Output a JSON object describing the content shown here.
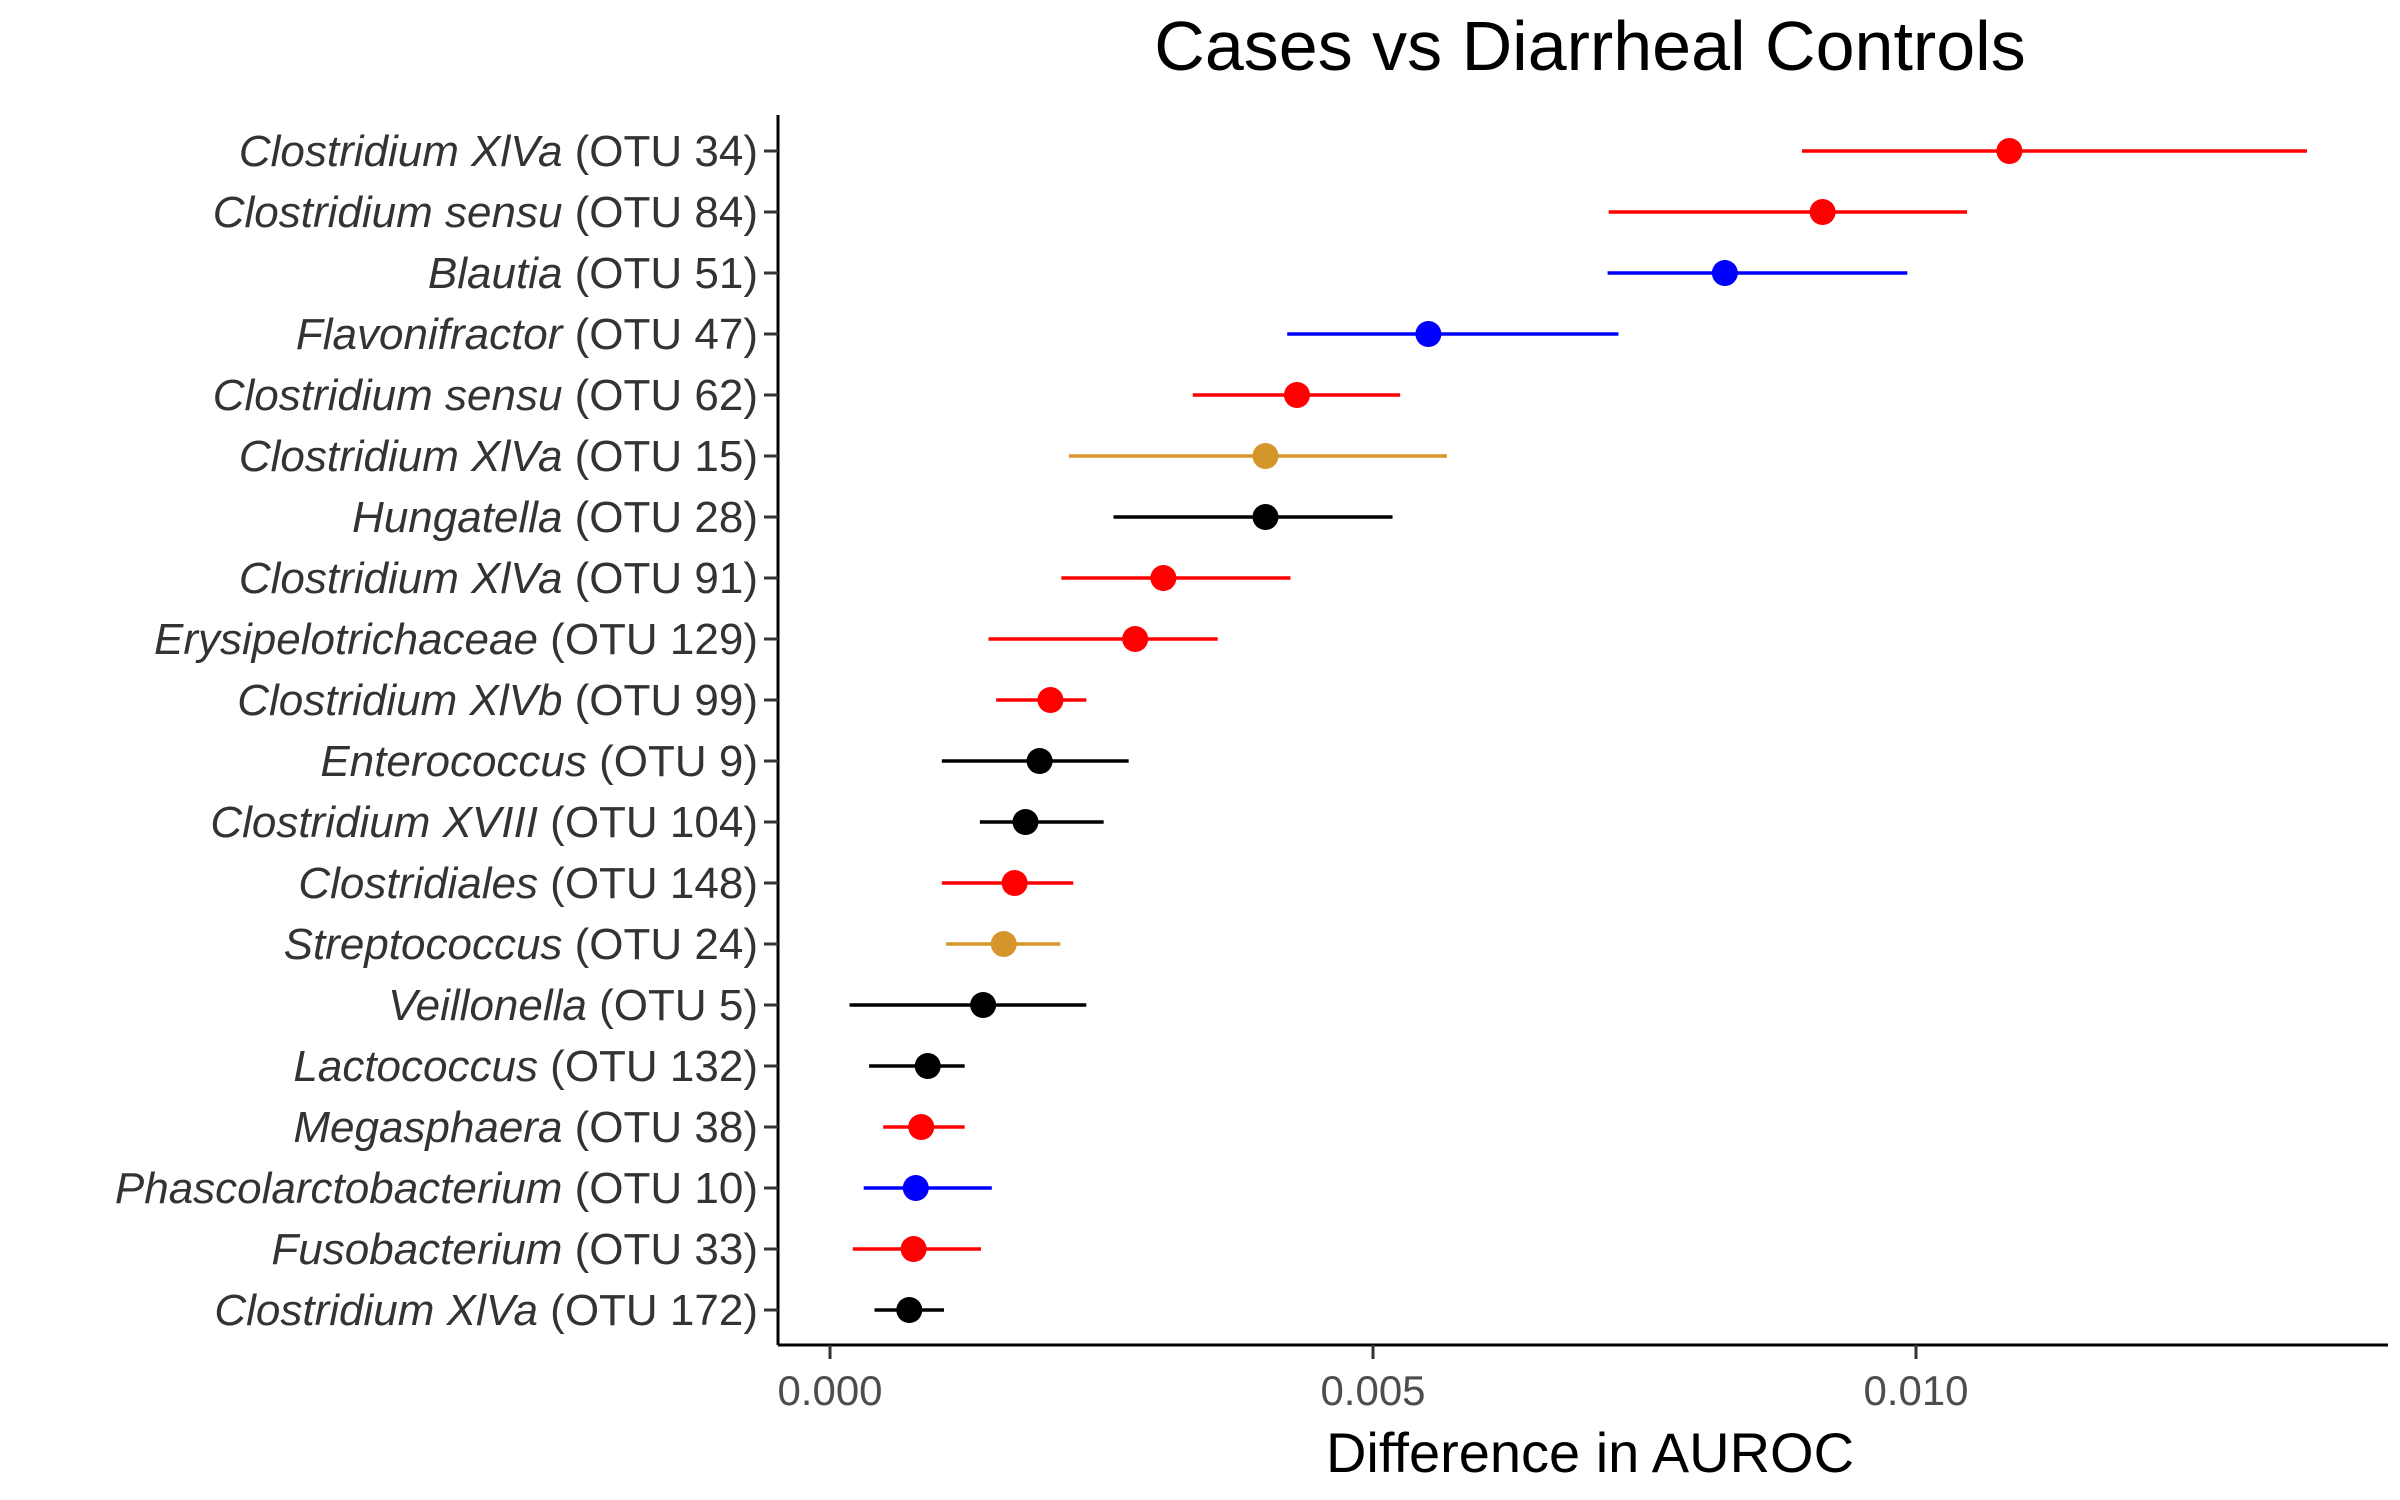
{
  "chart_data": {
    "type": "scatter",
    "title": "Cases vs Diarrheal Controls",
    "xlabel": "Difference in AUROC",
    "ylabel": "",
    "xlim": [
      -0.0005,
      0.0143
    ],
    "xticks": [
      0.0,
      0.005,
      0.01
    ],
    "xtick_labels": [
      "0.000",
      "0.005",
      "0.010"
    ],
    "grid": false,
    "legend": "none",
    "colors": {
      "red": "#ff0000",
      "blue": "#0000ff",
      "gold": "#d4962a",
      "black": "#000000"
    },
    "points": [
      {
        "genus": "Clostridium XlVa",
        "otu": " (OTU 34)",
        "x": 0.01086,
        "low": 0.00895,
        "high": 0.0136,
        "color": "red"
      },
      {
        "genus": "Clostridium sensu",
        "otu": " (OTU 84)",
        "x": 0.00914,
        "low": 0.00717,
        "high": 0.01047,
        "color": "red"
      },
      {
        "genus": "Blautia",
        "otu": " (OTU 51)",
        "x": 0.00824,
        "low": 0.00716,
        "high": 0.00992,
        "color": "blue"
      },
      {
        "genus": "Flavonifractor",
        "otu": " (OTU 47)",
        "x": 0.00551,
        "low": 0.00421,
        "high": 0.00726,
        "color": "blue"
      },
      {
        "genus": "Clostridium sensu",
        "otu": " (OTU 62)",
        "x": 0.0043,
        "low": 0.00334,
        "high": 0.00525,
        "color": "red"
      },
      {
        "genus": "Clostridium XlVa",
        "otu": " (OTU 15)",
        "x": 0.00401,
        "low": 0.0022,
        "high": 0.00568,
        "color": "gold"
      },
      {
        "genus": "Hungatella",
        "otu": " (OTU 28)",
        "x": 0.00401,
        "low": 0.00261,
        "high": 0.00518,
        "color": "black"
      },
      {
        "genus": "Clostridium XlVa",
        "otu": " (OTU 91)",
        "x": 0.00307,
        "low": 0.00213,
        "high": 0.00424,
        "color": "red"
      },
      {
        "genus": "Erysipelotrichaceae",
        "otu": " (OTU 129)",
        "x": 0.00281,
        "low": 0.00146,
        "high": 0.00357,
        "color": "red"
      },
      {
        "genus": "Clostridium XlVb",
        "otu": " (OTU 99)",
        "x": 0.00203,
        "low": 0.00153,
        "high": 0.00236,
        "color": "red"
      },
      {
        "genus": "Enterococcus",
        "otu": " (OTU 9)",
        "x": 0.00193,
        "low": 0.00103,
        "high": 0.00275,
        "color": "black"
      },
      {
        "genus": "Clostridium XVIII",
        "otu": " (OTU 104)",
        "x": 0.0018,
        "low": 0.00138,
        "high": 0.00252,
        "color": "black"
      },
      {
        "genus": "Clostridiales",
        "otu": " (OTU 148)",
        "x": 0.0017,
        "low": 0.00103,
        "high": 0.00224,
        "color": "red"
      },
      {
        "genus": "Streptococcus",
        "otu": " (OTU 24)",
        "x": 0.0016,
        "low": 0.00107,
        "high": 0.00212,
        "color": "gold"
      },
      {
        "genus": "Veillonella",
        "otu": " (OTU 5)",
        "x": 0.00141,
        "low": 0.00018,
        "high": 0.00236,
        "color": "black"
      },
      {
        "genus": "Lactococcus",
        "otu": " (OTU 132)",
        "x": 0.0009,
        "low": 0.00036,
        "high": 0.00124,
        "color": "black"
      },
      {
        "genus": "Megasphaera",
        "otu": " (OTU 38)",
        "x": 0.00084,
        "low": 0.00049,
        "high": 0.00124,
        "color": "red"
      },
      {
        "genus": "Phascolarctobacterium",
        "otu": " (OTU 10)",
        "x": 0.00079,
        "low": 0.00031,
        "high": 0.00149,
        "color": "blue"
      },
      {
        "genus": "Fusobacterium",
        "otu": " (OTU 33)",
        "x": 0.00077,
        "low": 0.00021,
        "high": 0.00139,
        "color": "red"
      },
      {
        "genus": "Clostridium XlVa",
        "otu": " (OTU 172)",
        "x": 0.00073,
        "low": 0.00041,
        "high": 0.00105,
        "color": "black"
      }
    ]
  }
}
